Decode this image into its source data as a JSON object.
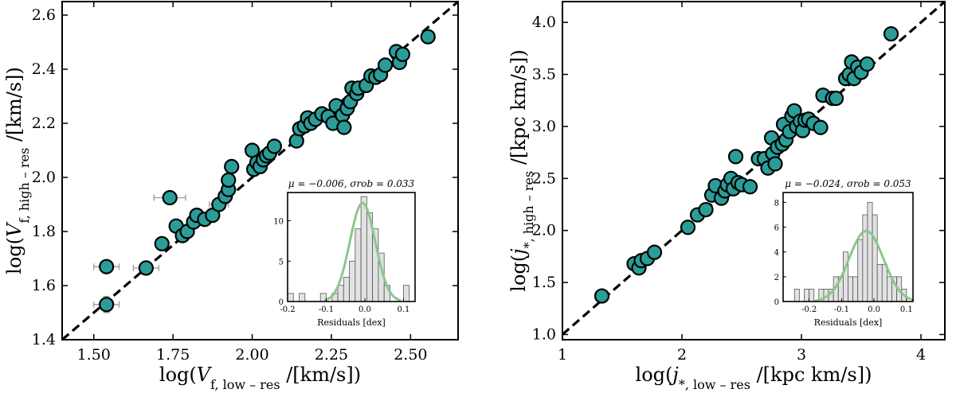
{
  "colors": {
    "point_fill": "#2a9d98",
    "point_edge": "#000000",
    "errorbar": "#9a9a9a",
    "identity_line": "#000000",
    "hist_fill": "#e2e2e2",
    "hist_edge": "#555555",
    "gaussian": "#8cc68a"
  },
  "chart_data": [
    {
      "type": "scatter",
      "xlabel": "log(V_f, low-res /[km/s])",
      "ylabel": "log(V_f, high-res /[km/s])",
      "xlim": [
        1.4,
        2.65
      ],
      "ylim": [
        1.4,
        2.65
      ],
      "xticks": [
        1.5,
        1.75,
        2.0,
        2.25,
        2.5
      ],
      "xtick_labels": [
        "1.50",
        "1.75",
        "2.00",
        "2.25",
        "2.50"
      ],
      "yticks": [
        1.4,
        1.6,
        1.8,
        2.0,
        2.2,
        2.4,
        2.6
      ],
      "ytick_labels": [
        "1.4",
        "1.6",
        "1.8",
        "2.0",
        "2.2",
        "2.4",
        "2.6"
      ],
      "identity_line": true,
      "points": [
        {
          "x": 1.54,
          "y": 1.53,
          "xerr": 0.04,
          "yerr": 0.03
        },
        {
          "x": 1.54,
          "y": 1.67,
          "xerr": 0.04,
          "yerr": 0.02
        },
        {
          "x": 1.665,
          "y": 1.665,
          "xerr": 0.04,
          "yerr": 0.02
        },
        {
          "x": 1.715,
          "y": 1.755,
          "xerr": 0.02,
          "yerr": 0.02
        },
        {
          "x": 1.74,
          "y": 1.925,
          "xerr": 0.05,
          "yerr": 0.02
        },
        {
          "x": 1.76,
          "y": 1.82,
          "xerr": 0.02,
          "yerr": 0.02
        },
        {
          "x": 1.78,
          "y": 1.785,
          "xerr": 0.02,
          "yerr": 0.02
        },
        {
          "x": 1.795,
          "y": 1.8,
          "xerr": 0.02,
          "yerr": 0.02
        },
        {
          "x": 1.815,
          "y": 1.835,
          "xerr": 0.02,
          "yerr": 0.02
        },
        {
          "x": 1.825,
          "y": 1.86,
          "xerr": 0.02,
          "yerr": 0.02
        },
        {
          "x": 1.85,
          "y": 1.845,
          "xerr": 0.02,
          "yerr": 0.02
        },
        {
          "x": 1.875,
          "y": 1.86,
          "xerr": 0.02,
          "yerr": 0.02
        },
        {
          "x": 1.895,
          "y": 1.9,
          "xerr": 0.03,
          "yerr": 0.02
        },
        {
          "x": 1.915,
          "y": 1.93,
          "xerr": 0.02,
          "yerr": 0.02
        },
        {
          "x": 1.925,
          "y": 1.955,
          "xerr": 0.02,
          "yerr": 0.02
        },
        {
          "x": 1.925,
          "y": 1.99,
          "xerr": 0.02,
          "yerr": 0.02
        },
        {
          "x": 1.935,
          "y": 2.04,
          "xerr": 0.02,
          "yerr": 0.02
        },
        {
          "x": 2.0,
          "y": 2.1,
          "xerr": 0.02,
          "yerr": 0.02
        },
        {
          "x": 2.005,
          "y": 2.03,
          "xerr": 0.02,
          "yerr": 0.02
        },
        {
          "x": 2.015,
          "y": 2.055,
          "xerr": 0.02,
          "yerr": 0.02
        },
        {
          "x": 2.025,
          "y": 2.04,
          "xerr": 0.02,
          "yerr": 0.02
        },
        {
          "x": 2.035,
          "y": 2.065,
          "xerr": 0.02,
          "yerr": 0.02
        },
        {
          "x": 2.045,
          "y": 2.08,
          "xerr": 0.02,
          "yerr": 0.02
        },
        {
          "x": 2.055,
          "y": 2.09,
          "xerr": 0.02,
          "yerr": 0.02
        },
        {
          "x": 2.07,
          "y": 2.115,
          "xerr": 0.02,
          "yerr": 0.02
        },
        {
          "x": 2.14,
          "y": 2.135,
          "xerr": 0.02,
          "yerr": 0.02
        },
        {
          "x": 2.15,
          "y": 2.18,
          "xerr": 0.02,
          "yerr": 0.02
        },
        {
          "x": 2.165,
          "y": 2.19,
          "xerr": 0.02,
          "yerr": 0.02
        },
        {
          "x": 2.175,
          "y": 2.22,
          "xerr": 0.02,
          "yerr": 0.02
        },
        {
          "x": 2.185,
          "y": 2.2,
          "xerr": 0.02,
          "yerr": 0.02
        },
        {
          "x": 2.2,
          "y": 2.215,
          "xerr": 0.02,
          "yerr": 0.02
        },
        {
          "x": 2.22,
          "y": 2.235,
          "xerr": 0.02,
          "yerr": 0.02
        },
        {
          "x": 2.24,
          "y": 2.225,
          "xerr": 0.02,
          "yerr": 0.02
        },
        {
          "x": 2.255,
          "y": 2.2,
          "xerr": 0.02,
          "yerr": 0.02
        },
        {
          "x": 2.265,
          "y": 2.265,
          "xerr": 0.02,
          "yerr": 0.02
        },
        {
          "x": 2.285,
          "y": 2.23,
          "xerr": 0.02,
          "yerr": 0.02
        },
        {
          "x": 2.29,
          "y": 2.185,
          "xerr": 0.02,
          "yerr": 0.02
        },
        {
          "x": 2.3,
          "y": 2.255,
          "xerr": 0.02,
          "yerr": 0.02
        },
        {
          "x": 2.31,
          "y": 2.28,
          "xerr": 0.02,
          "yerr": 0.02
        },
        {
          "x": 2.315,
          "y": 2.33,
          "xerr": 0.02,
          "yerr": 0.02
        },
        {
          "x": 2.33,
          "y": 2.31,
          "xerr": 0.02,
          "yerr": 0.02
        },
        {
          "x": 2.335,
          "y": 2.33,
          "xerr": 0.02,
          "yerr": 0.02
        },
        {
          "x": 2.36,
          "y": 2.34,
          "xerr": 0.02,
          "yerr": 0.02
        },
        {
          "x": 2.375,
          "y": 2.375,
          "xerr": 0.02,
          "yerr": 0.02
        },
        {
          "x": 2.39,
          "y": 2.37,
          "xerr": 0.02,
          "yerr": 0.02
        },
        {
          "x": 2.405,
          "y": 2.38,
          "xerr": 0.02,
          "yerr": 0.02
        },
        {
          "x": 2.42,
          "y": 2.415,
          "xerr": 0.02,
          "yerr": 0.02
        },
        {
          "x": 2.455,
          "y": 2.465,
          "xerr": 0.02,
          "yerr": 0.02
        },
        {
          "x": 2.465,
          "y": 2.425,
          "xerr": 0.02,
          "yerr": 0.02
        },
        {
          "x": 2.475,
          "y": 2.455,
          "xerr": 0.02,
          "yerr": 0.02
        },
        {
          "x": 2.555,
          "y": 2.52,
          "xerr": 0.02,
          "yerr": 0.02
        }
      ],
      "inset": {
        "type": "histogram",
        "stat_text": "μ = −0.006, σrob = 0.033",
        "xlabel": "Residuals [dex]",
        "xlim": [
          -0.2,
          0.13
        ],
        "ylim": [
          0,
          13.5
        ],
        "xticks": [
          -0.2,
          -0.1,
          0.0,
          0.1
        ],
        "xtick_labels": [
          "-0.2",
          "-0.1",
          "0.0",
          "0.1"
        ],
        "yticks": [
          0,
          5,
          10
        ],
        "ytick_labels": [
          "0",
          "5",
          "10"
        ],
        "bins": [
          {
            "left": -0.2,
            "right": -0.185,
            "count": 1
          },
          {
            "left": -0.17,
            "right": -0.155,
            "count": 1
          },
          {
            "left": -0.115,
            "right": -0.1,
            "count": 1
          },
          {
            "left": -0.085,
            "right": -0.07,
            "count": 1
          },
          {
            "left": -0.07,
            "right": -0.055,
            "count": 2
          },
          {
            "left": -0.055,
            "right": -0.04,
            "count": 3
          },
          {
            "left": -0.04,
            "right": -0.025,
            "count": 5
          },
          {
            "left": -0.025,
            "right": -0.01,
            "count": 9
          },
          {
            "left": -0.01,
            "right": 0.005,
            "count": 13
          },
          {
            "left": 0.005,
            "right": 0.02,
            "count": 11
          },
          {
            "left": 0.02,
            "right": 0.035,
            "count": 9
          },
          {
            "left": 0.035,
            "right": 0.05,
            "count": 6
          },
          {
            "left": 0.05,
            "right": 0.065,
            "count": 2
          },
          {
            "left": 0.1,
            "right": 0.115,
            "count": 2
          }
        ],
        "gaussian": {
          "mu": -0.006,
          "sigma": 0.033,
          "amplitude": 12.2
        }
      }
    },
    {
      "type": "scatter",
      "xlabel": "log(j_*, low-res /[kpc km/s])",
      "ylabel": "log(j_*, high-res /[kpc km/s])",
      "xlim": [
        1.0,
        4.2
      ],
      "ylim": [
        0.95,
        4.2
      ],
      "xticks": [
        1,
        2,
        3,
        4
      ],
      "xtick_labels": [
        "1",
        "2",
        "3",
        "4"
      ],
      "yticks": [
        1.0,
        1.5,
        2.0,
        2.5,
        3.0,
        3.5,
        4.0
      ],
      "ytick_labels": [
        "1.0",
        "1.5",
        "2.0",
        "2.5",
        "3.0",
        "3.5",
        "4.0"
      ],
      "identity_line": true,
      "points": [
        {
          "x": 1.33,
          "y": 1.37,
          "xerr": 0.03,
          "yerr": 0.03
        },
        {
          "x": 1.6,
          "y": 1.68,
          "xerr": 0.03,
          "yerr": 0.04
        },
        {
          "x": 1.64,
          "y": 1.64,
          "xerr": 0.03,
          "yerr": 0.05
        },
        {
          "x": 1.66,
          "y": 1.71,
          "xerr": 0.03,
          "yerr": 0.04
        },
        {
          "x": 1.71,
          "y": 1.73,
          "xerr": 0.03,
          "yerr": 0.04
        },
        {
          "x": 1.77,
          "y": 1.79,
          "xerr": 0.03,
          "yerr": 0.04
        },
        {
          "x": 2.05,
          "y": 2.03,
          "xerr": 0.03,
          "yerr": 0.06
        },
        {
          "x": 2.13,
          "y": 2.15,
          "xerr": 0.03,
          "yerr": 0.04
        },
        {
          "x": 2.2,
          "y": 2.2,
          "xerr": 0.03,
          "yerr": 0.04
        },
        {
          "x": 2.25,
          "y": 2.34,
          "xerr": 0.03,
          "yerr": 0.04
        },
        {
          "x": 2.28,
          "y": 2.43,
          "xerr": 0.03,
          "yerr": 0.04
        },
        {
          "x": 2.33,
          "y": 2.31,
          "xerr": 0.03,
          "yerr": 0.04
        },
        {
          "x": 2.36,
          "y": 2.38,
          "xerr": 0.03,
          "yerr": 0.04
        },
        {
          "x": 2.38,
          "y": 2.44,
          "xerr": 0.03,
          "yerr": 0.05
        },
        {
          "x": 2.41,
          "y": 2.5,
          "xerr": 0.03,
          "yerr": 0.04
        },
        {
          "x": 2.43,
          "y": 2.4,
          "xerr": 0.03,
          "yerr": 0.04
        },
        {
          "x": 2.45,
          "y": 2.71,
          "xerr": 0.03,
          "yerr": 0.04
        },
        {
          "x": 2.47,
          "y": 2.46,
          "xerr": 0.03,
          "yerr": 0.04
        },
        {
          "x": 2.5,
          "y": 2.44,
          "xerr": 0.03,
          "yerr": 0.05
        },
        {
          "x": 2.57,
          "y": 2.42,
          "xerr": 0.03,
          "yerr": 0.06
        },
        {
          "x": 2.64,
          "y": 2.69,
          "xerr": 0.03,
          "yerr": 0.05
        },
        {
          "x": 2.69,
          "y": 2.69,
          "xerr": 0.03,
          "yerr": 0.04
        },
        {
          "x": 2.72,
          "y": 2.6,
          "xerr": 0.03,
          "yerr": 0.04
        },
        {
          "x": 2.75,
          "y": 2.89,
          "xerr": 0.03,
          "yerr": 0.04
        },
        {
          "x": 2.76,
          "y": 2.74,
          "xerr": 0.03,
          "yerr": 0.04
        },
        {
          "x": 2.78,
          "y": 2.64,
          "xerr": 0.03,
          "yerr": 0.04
        },
        {
          "x": 2.8,
          "y": 2.8,
          "xerr": 0.03,
          "yerr": 0.04
        },
        {
          "x": 2.84,
          "y": 2.83,
          "xerr": 0.03,
          "yerr": 0.04
        },
        {
          "x": 2.85,
          "y": 3.02,
          "xerr": 0.03,
          "yerr": 0.06
        },
        {
          "x": 2.87,
          "y": 2.87,
          "xerr": 0.03,
          "yerr": 0.04
        },
        {
          "x": 2.9,
          "y": 2.95,
          "xerr": 0.03,
          "yerr": 0.04
        },
        {
          "x": 2.92,
          "y": 3.1,
          "xerr": 0.03,
          "yerr": 0.04
        },
        {
          "x": 2.94,
          "y": 3.15,
          "xerr": 0.03,
          "yerr": 0.05
        },
        {
          "x": 2.96,
          "y": 3.0,
          "xerr": 0.03,
          "yerr": 0.04
        },
        {
          "x": 2.99,
          "y": 3.05,
          "xerr": 0.03,
          "yerr": 0.04
        },
        {
          "x": 3.01,
          "y": 2.96,
          "xerr": 0.03,
          "yerr": 0.04
        },
        {
          "x": 3.03,
          "y": 3.06,
          "xerr": 0.03,
          "yerr": 0.04
        },
        {
          "x": 3.06,
          "y": 3.07,
          "xerr": 0.03,
          "yerr": 0.04
        },
        {
          "x": 3.1,
          "y": 3.03,
          "xerr": 0.03,
          "yerr": 0.04
        },
        {
          "x": 3.16,
          "y": 2.99,
          "xerr": 0.03,
          "yerr": 0.04
        },
        {
          "x": 3.18,
          "y": 3.3,
          "xerr": 0.03,
          "yerr": 0.04
        },
        {
          "x": 3.26,
          "y": 3.27,
          "xerr": 0.03,
          "yerr": 0.04
        },
        {
          "x": 3.29,
          "y": 3.27,
          "xerr": 0.03,
          "yerr": 0.04
        },
        {
          "x": 3.37,
          "y": 3.46,
          "xerr": 0.03,
          "yerr": 0.04
        },
        {
          "x": 3.4,
          "y": 3.5,
          "xerr": 0.03,
          "yerr": 0.04
        },
        {
          "x": 3.42,
          "y": 3.62,
          "xerr": 0.03,
          "yerr": 0.04
        },
        {
          "x": 3.44,
          "y": 3.46,
          "xerr": 0.03,
          "yerr": 0.04
        },
        {
          "x": 3.47,
          "y": 3.57,
          "xerr": 0.03,
          "yerr": 0.04
        },
        {
          "x": 3.5,
          "y": 3.52,
          "xerr": 0.03,
          "yerr": 0.04
        },
        {
          "x": 3.55,
          "y": 3.6,
          "xerr": 0.03,
          "yerr": 0.04
        },
        {
          "x": 3.75,
          "y": 3.89,
          "xerr": 0.03,
          "yerr": 0.04
        }
      ],
      "inset": {
        "type": "histogram",
        "stat_text": "μ = −0.024, σrob = 0.053",
        "xlabel": "Residuals [dex]",
        "xlim": [
          -0.28,
          0.12
        ],
        "ylim": [
          0,
          8.8
        ],
        "xticks": [
          -0.2,
          -0.1,
          0.0,
          0.1
        ],
        "xtick_labels": [
          "-0.2",
          "-0.1",
          "0.0",
          "0.1"
        ],
        "yticks": [
          0,
          2,
          4,
          6,
          8
        ],
        "ytick_labels": [
          "0",
          "2",
          "4",
          "6",
          "8"
        ],
        "bins": [
          {
            "left": -0.245,
            "right": -0.23,
            "count": 1
          },
          {
            "left": -0.215,
            "right": -0.2,
            "count": 1
          },
          {
            "left": -0.2,
            "right": -0.185,
            "count": 1
          },
          {
            "left": -0.17,
            "right": -0.155,
            "count": 1
          },
          {
            "left": -0.155,
            "right": -0.14,
            "count": 1
          },
          {
            "left": -0.14,
            "right": -0.125,
            "count": 1
          },
          {
            "left": -0.125,
            "right": -0.11,
            "count": 2
          },
          {
            "left": -0.11,
            "right": -0.095,
            "count": 2
          },
          {
            "left": -0.095,
            "right": -0.08,
            "count": 4
          },
          {
            "left": -0.08,
            "right": -0.065,
            "count": 2
          },
          {
            "left": -0.065,
            "right": -0.05,
            "count": 2
          },
          {
            "left": -0.05,
            "right": -0.035,
            "count": 5
          },
          {
            "left": -0.035,
            "right": -0.02,
            "count": 7
          },
          {
            "left": -0.02,
            "right": -0.005,
            "count": 8
          },
          {
            "left": -0.005,
            "right": 0.01,
            "count": 7
          },
          {
            "left": 0.01,
            "right": 0.025,
            "count": 3
          },
          {
            "left": 0.025,
            "right": 0.04,
            "count": 3
          },
          {
            "left": 0.04,
            "right": 0.055,
            "count": 2
          },
          {
            "left": 0.055,
            "right": 0.07,
            "count": 2
          },
          {
            "left": 0.07,
            "right": 0.085,
            "count": 2
          },
          {
            "left": 0.085,
            "right": 0.1,
            "count": 1
          }
        ],
        "gaussian": {
          "mu": -0.024,
          "sigma": 0.053,
          "amplitude": 5.7
        }
      }
    }
  ]
}
